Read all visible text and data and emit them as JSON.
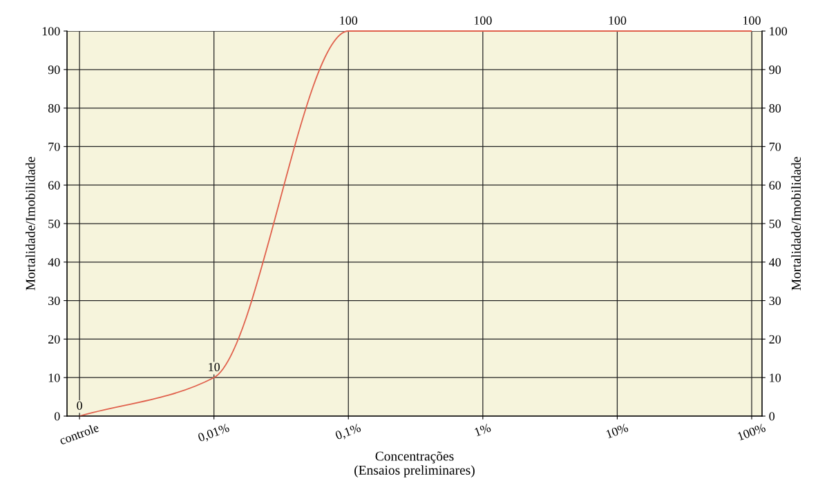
{
  "chart_data": {
    "type": "line",
    "xlabel": "Concentrações\n(Ensaios preliminares)",
    "ylabel": "Mortalidade/Imobilidade",
    "y2label": "Mortalidade/Imobilidade",
    "categories": [
      "controle",
      "0,01%",
      "0,1%",
      "1%",
      "10%",
      "100%"
    ],
    "series": [
      {
        "color": "#e0604c",
        "values": [
          0,
          10,
          100,
          100,
          100,
          100
        ]
      }
    ],
    "ylim": [
      0,
      100
    ],
    "yticks": [
      0,
      10,
      20,
      30,
      40,
      50,
      60,
      70,
      80,
      90,
      100
    ],
    "y2lim": [
      0,
      100
    ],
    "y2ticks": [
      0,
      10,
      20,
      30,
      40,
      50,
      60,
      70,
      80,
      90,
      100
    ],
    "grid": true,
    "data_labels": true,
    "marker": "none",
    "line_style": "solid"
  }
}
